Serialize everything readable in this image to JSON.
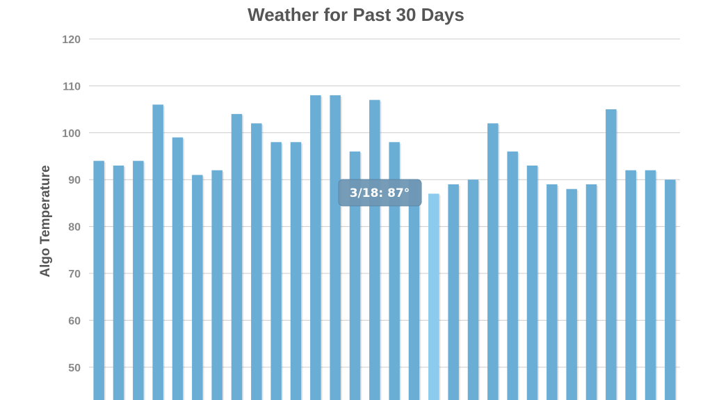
{
  "chart_data": {
    "type": "bar",
    "title": "Weather for Past 30 Days",
    "xlabel": "",
    "ylabel": "Algo Temperature",
    "yticks": [
      50,
      60,
      70,
      80,
      90,
      100,
      110,
      120
    ],
    "ylim": [
      43,
      120
    ],
    "grid": true,
    "values": [
      94,
      93,
      94,
      106,
      99,
      91,
      92,
      104,
      102,
      98,
      98,
      108,
      108,
      96,
      107,
      98,
      90,
      87,
      89,
      90,
      102,
      96,
      93,
      89,
      88,
      89,
      105,
      92,
      92,
      90
    ],
    "highlight_index": 17,
    "colors": {
      "bar": "#6aaed6",
      "bar_highlight": "#8ccbed",
      "grid": "#cccccc"
    },
    "tooltip": {
      "text": "3/18: 87°"
    }
  }
}
